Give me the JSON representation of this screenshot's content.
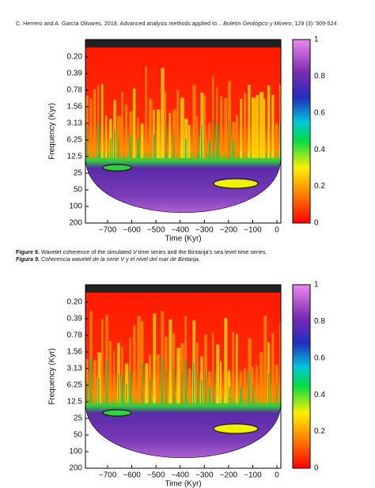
{
  "header": {
    "authors": "C. Herrero and A. García Olivares, 2018. Advanced analysis methods applied to... ",
    "journal": "Boletín Geológico y Minero",
    "issue": ", 129 (3): 509-524"
  },
  "figures": [
    {
      "y_label": "Frequency (Kyr)",
      "y_ticks": [
        "0.20",
        "0.39",
        "0.78",
        "1.56",
        "3.13",
        "6.25",
        "12.5",
        "25",
        "50",
        "100",
        "200"
      ],
      "x_label": "Time (Kyr)",
      "x_ticks": [
        "−700",
        "−600",
        "−500",
        "−400",
        "−300",
        "−200",
        "−100",
        "0"
      ],
      "colorbar_ticks": [
        "0",
        "0.2",
        "0.4",
        "0.6",
        "0.8",
        "1"
      ]
    },
    {
      "y_label": "Frequency (Kyr)",
      "y_ticks": [
        "0.20",
        "0.39",
        "0.78",
        "1.56",
        "3.13",
        "6.25",
        "12.5",
        "25",
        "50",
        "100",
        "200"
      ],
      "x_label": "Time (Kyr)",
      "x_ticks": [
        "−700",
        "−600",
        "−500",
        "−400",
        "−300",
        "−200",
        "−100",
        "0"
      ],
      "colorbar_ticks": [
        "0",
        "0.2",
        "0.4",
        "0.6",
        "0.8",
        "1"
      ]
    }
  ],
  "captions": [
    {
      "label": "Figure 9.",
      "text_a": " Wavelet coherence of the simulated ",
      "var": "V",
      "text_b": " time series and the Bintanja's sea level time series."
    },
    {
      "label": "Figura 9.",
      "text": " Coherencia wavelet de la serie V y el nivel del mar de Bintanja."
    }
  ]
}
